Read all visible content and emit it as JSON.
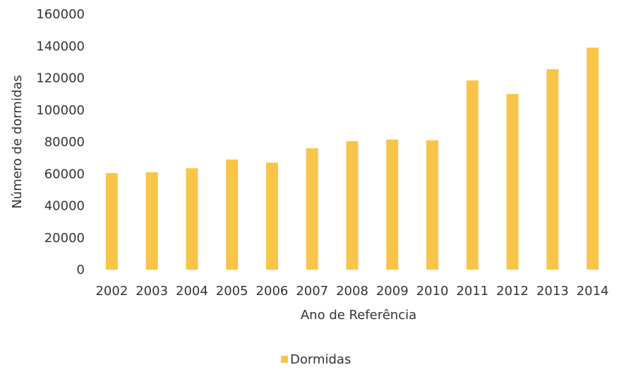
{
  "chart_data": {
    "type": "bar",
    "categories": [
      "2002",
      "2003",
      "2004",
      "2005",
      "2006",
      "2007",
      "2008",
      "2009",
      "2010",
      "2011",
      "2012",
      "2013",
      "2014"
    ],
    "series": [
      {
        "name": "Dormidas",
        "values": [
          60500,
          61000,
          63500,
          69000,
          67000,
          76000,
          80500,
          81500,
          81000,
          118500,
          110000,
          125500,
          139000
        ],
        "color": "#F9C549"
      }
    ],
    "xlabel": "Ano de Referência",
    "ylabel": "Número de dormidas",
    "ylim": [
      0,
      160000
    ],
    "yticks": [
      "0",
      "20000",
      "40000",
      "60000",
      "80000",
      "100000",
      "120000",
      "140000",
      "160000"
    ],
    "grid": false,
    "legend_position": "bottom"
  }
}
